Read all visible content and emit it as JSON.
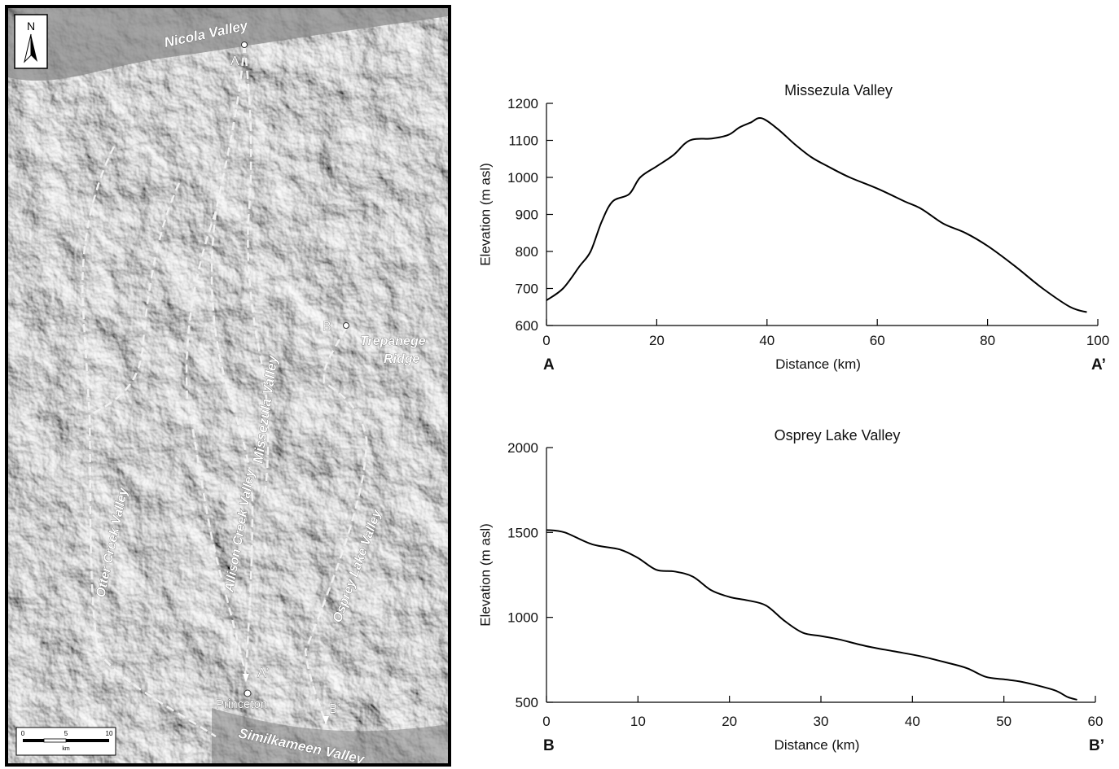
{
  "map": {
    "north_label": "N",
    "labels": {
      "nicola": "Nicola Valley",
      "a": "A",
      "b": "B",
      "a_prime": "A'",
      "b_prime": "B'",
      "trepanege_1": "Trepanege",
      "trepanege_2": "Ridge",
      "missezula": "Missezula Valley",
      "allison": "Allison Creek Valley",
      "otter": "Otter Creek Valley",
      "osprey": "Osprey Lake Valley",
      "princeton": "Princeton",
      "similkameen": "Similkameen Valley"
    },
    "scale_bar": {
      "ticks": [
        "0",
        "5",
        "10"
      ],
      "unit": "km"
    }
  },
  "chart_data": [
    {
      "type": "line",
      "title": "Missezula Valley",
      "xlabel": "Distance (km)",
      "ylabel": "Elevation (m asl)",
      "xlim": [
        0,
        100
      ],
      "ylim": [
        600,
        1200
      ],
      "xticks": [
        "0",
        "20",
        "40",
        "60",
        "80",
        "100"
      ],
      "yticks": [
        "600",
        "700",
        "800",
        "900",
        "1000",
        "1100",
        "1200"
      ],
      "start_label": "A",
      "end_label": "A’",
      "x": [
        0,
        3,
        6,
        8,
        10,
        12,
        15,
        17,
        20,
        23,
        26,
        30,
        33,
        35,
        37,
        39,
        42,
        45,
        48,
        51,
        55,
        60,
        65,
        68,
        72,
        76,
        80,
        85,
        90,
        95,
        98
      ],
      "y": [
        668,
        700,
        760,
        800,
        880,
        935,
        955,
        1000,
        1030,
        1060,
        1100,
        1105,
        1115,
        1135,
        1148,
        1160,
        1130,
        1090,
        1055,
        1030,
        1000,
        970,
        935,
        915,
        875,
        850,
        815,
        760,
        700,
        650,
        636
      ]
    },
    {
      "type": "line",
      "title": "Osprey Lake Valley",
      "xlabel": "Distance (km)",
      "ylabel": "Elevation (m asl)",
      "xlim": [
        0,
        60
      ],
      "ylim": [
        500,
        2000
      ],
      "xticks": [
        "0",
        "10",
        "20",
        "30",
        "40",
        "50",
        "60"
      ],
      "yticks": [
        "500",
        "1000",
        "1500",
        "2000"
      ],
      "start_label": "B",
      "end_label": "B’",
      "x": [
        0,
        2,
        5,
        8,
        10,
        12,
        14,
        16,
        18,
        20,
        22,
        24,
        26,
        28,
        30,
        32,
        35,
        38,
        41,
        44,
        46,
        48,
        50,
        52,
        55,
        56,
        57,
        58
      ],
      "y": [
        1515,
        1500,
        1430,
        1400,
        1350,
        1280,
        1270,
        1240,
        1160,
        1120,
        1100,
        1070,
        980,
        910,
        890,
        870,
        830,
        800,
        770,
        730,
        700,
        650,
        635,
        620,
        580,
        560,
        530,
        515
      ]
    }
  ]
}
